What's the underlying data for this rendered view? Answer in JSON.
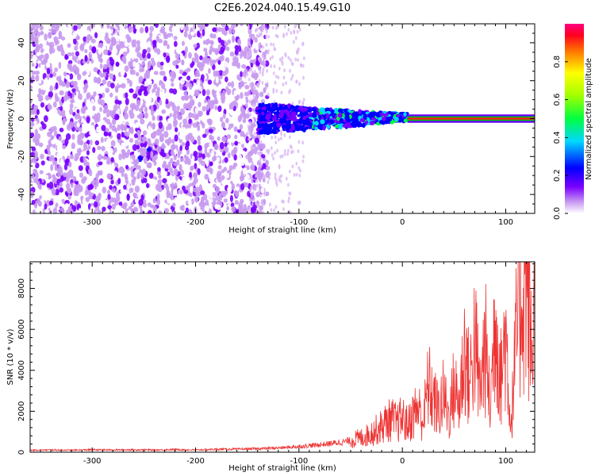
{
  "title": "C2E6.2024.040.15.49.G10",
  "chart_data": [
    {
      "type": "heatmap",
      "title": "",
      "xlabel": "Height of straight line (km)",
      "ylabel": "Frequency (Hz)",
      "xlim": [
        -360,
        128
      ],
      "ylim": [
        -50,
        50
      ],
      "xticks": [
        -300,
        -200,
        -100,
        0,
        100
      ],
      "yticks": [
        -40,
        -20,
        0,
        20,
        40
      ],
      "colorbar": {
        "label": "Normalized spectral amplitude",
        "range": [
          0,
          1
        ],
        "ticks": [
          "0.0",
          "0.2",
          "0.4",
          "0.6",
          "0.8"
        ]
      },
      "regions": [
        {
          "x_range": [
            -360,
            -140
          ],
          "description": "scattered low amplitude speckle across all frequencies",
          "amplitude": [
            0.05,
            0.3
          ]
        },
        {
          "x_range": [
            -140,
            -90
          ],
          "description": "blue cluster near 0 Hz",
          "amplitude": [
            0.15,
            0.35
          ]
        },
        {
          "x_range": [
            -90,
            0
          ],
          "description": "blue/cyan/green signal band near 0 Hz",
          "amplitude": [
            0.2,
            0.55
          ]
        },
        {
          "x_range": [
            0,
            128
          ],
          "description": "strong narrow line at 0 Hz",
          "amplitude": [
            0.9,
            1.0
          ]
        }
      ]
    },
    {
      "type": "line",
      "title": "",
      "xlabel": "Height of straight line (km)",
      "ylabel": "SNR (10 * v/v)",
      "xlim": [
        -360,
        128
      ],
      "ylim": [
        0,
        9300
      ],
      "xticks": [
        -300,
        -200,
        -100,
        0,
        100
      ],
      "yticks": [
        0,
        2000,
        4000,
        6000,
        8000
      ],
      "color": "#ee3333",
      "x": [
        -360,
        -340,
        -320,
        -300,
        -280,
        -260,
        -240,
        -220,
        -200,
        -180,
        -160,
        -140,
        -130,
        -120,
        -110,
        -100,
        -90,
        -80,
        -70,
        -60,
        -50,
        -45,
        -40,
        -35,
        -30,
        -25,
        -20,
        -15,
        -10,
        -5,
        0,
        5,
        10,
        15,
        20,
        25,
        30,
        35,
        40,
        45,
        50,
        55,
        60,
        65,
        70,
        75,
        80,
        85,
        90,
        95,
        100,
        105,
        110,
        115,
        120,
        125,
        128
      ],
      "y": [
        100,
        110,
        100,
        120,
        110,
        120,
        110,
        130,
        110,
        140,
        150,
        170,
        190,
        210,
        240,
        280,
        320,
        360,
        420,
        480,
        560,
        640,
        700,
        800,
        950,
        1100,
        1250,
        1500,
        1600,
        1400,
        1700,
        1300,
        1800,
        2200,
        1500,
        3300,
        2600,
        2000,
        2800,
        1700,
        3200,
        2300,
        5000,
        3300,
        5600,
        2800,
        5300,
        2100,
        7000,
        3500,
        5900,
        1100,
        5400,
        7700,
        8900,
        4800,
        7200
      ]
    }
  ]
}
